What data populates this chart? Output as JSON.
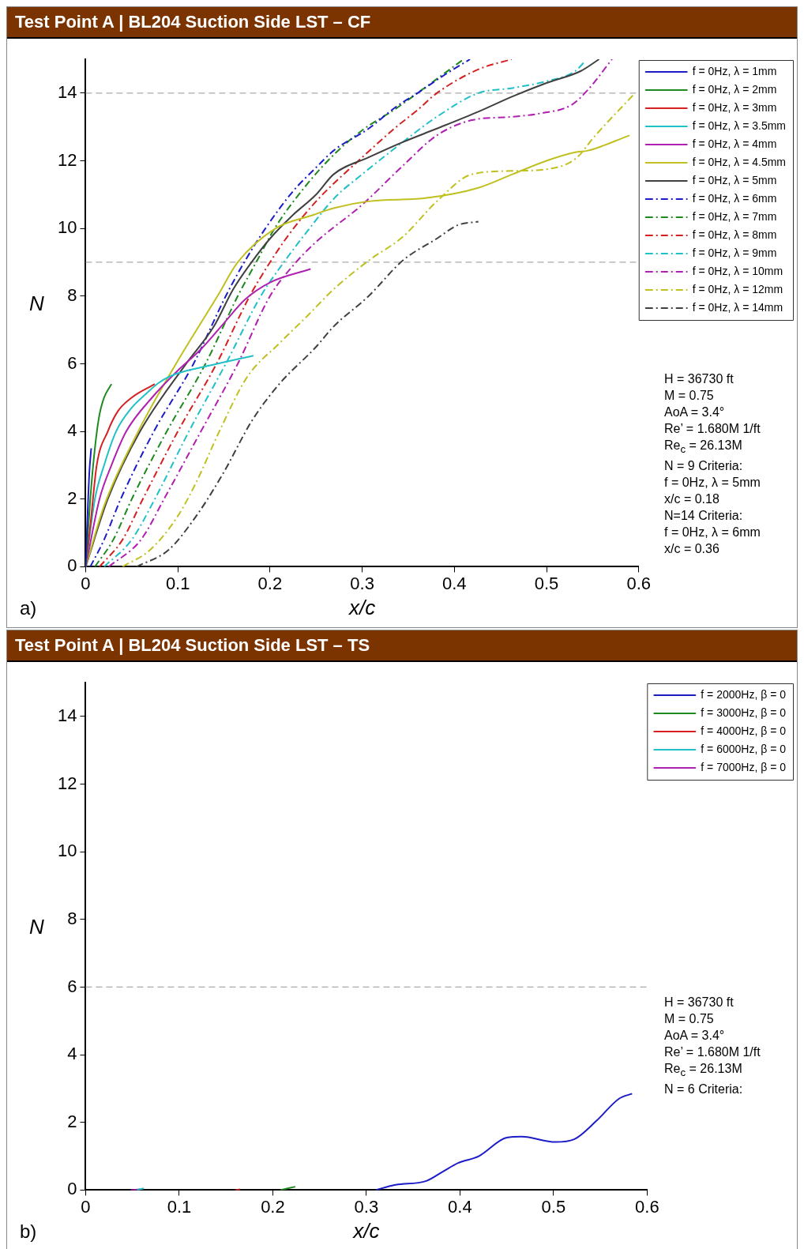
{
  "chart_data": [
    {
      "type": "line",
      "title": "Test Point A | BL204 Suction Side LST – CF",
      "xlabel": "x/c",
      "ylabel": "N",
      "xlim": [
        0,
        0.6
      ],
      "xticks": [
        0,
        0.1,
        0.2,
        0.3,
        0.4,
        0.5,
        0.6
      ],
      "ylim": [
        0,
        15
      ],
      "yticks": [
        0,
        2,
        4,
        6,
        8,
        10,
        12,
        14
      ],
      "grid": false,
      "legend": "top right",
      "marker": "none",
      "ref_lines": [
        {
          "axis": "y",
          "value": 14,
          "color": "#aaaaaa",
          "line_style": "dashed"
        },
        {
          "axis": "y",
          "value": 9,
          "color": "#aaaaaa",
          "line_style": "dashed"
        }
      ],
      "annotations": [
        "a)",
        "H = 36730 ft",
        "M = 0.75",
        "AoA = 3.4°",
        "Re’ = 1.680M 1/ft",
        "Re$_{c}$ = 26.13M",
        "N = 9 Criteria:",
        "f = 0Hz, λ = 5mm",
        "x/c = 0.18",
        "N=14 Criteria:",
        "f = 0Hz, λ = 6mm",
        "x/c = 0.36"
      ],
      "series": [
        {
          "name": "f = 0Hz, λ = 1mm",
          "color": "#1c1cc8",
          "line_style": "solid",
          "x": [
            0,
            0.002,
            0.004,
            0.006
          ],
          "values": [
            0,
            1.5,
            2.8,
            3.5
          ]
        },
        {
          "name": "f = 0Hz, λ = 2mm",
          "color": "#1e8a1e",
          "line_style": "solid",
          "x": [
            0,
            0.005,
            0.01,
            0.015,
            0.02,
            0.028
          ],
          "values": [
            0,
            2,
            3.5,
            4.5,
            5,
            5.4
          ]
        },
        {
          "name": "f = 0Hz, λ = 3mm",
          "color": "#d42020",
          "line_style": "solid",
          "x": [
            0,
            0.005,
            0.012,
            0.024,
            0.035,
            0.05,
            0.075
          ],
          "values": [
            0,
            1.2,
            3,
            4,
            4.6,
            5,
            5.4
          ]
        },
        {
          "name": "f = 0Hz, λ = 3.5mm",
          "color": "#20c0c8",
          "line_style": "solid",
          "x": [
            0,
            0.01,
            0.02,
            0.033,
            0.05,
            0.065,
            0.08,
            0.098,
            0.135,
            0.182
          ],
          "values": [
            0,
            2,
            3,
            4,
            4.7,
            5.1,
            5.45,
            5.7,
            5.95,
            6.24
          ]
        },
        {
          "name": "f = 0Hz, λ = 4mm",
          "color": "#b020b0",
          "line_style": "solid",
          "x": [
            0,
            0.015,
            0.028,
            0.044,
            0.072,
            0.1,
            0.124,
            0.15,
            0.173,
            0.2,
            0.244
          ],
          "values": [
            0,
            2,
            3,
            4,
            5,
            5.8,
            6.4,
            7.2,
            7.9,
            8.4,
            8.8
          ]
        },
        {
          "name": "f = 0Hz, λ = 4.5mm",
          "color": "#c0c020",
          "line_style": "solid",
          "x": [
            0,
            0.02,
            0.057,
            0.098,
            0.143,
            0.165,
            0.206,
            0.247,
            0.269,
            0.307,
            0.37,
            0.426,
            0.463,
            0.5,
            0.531,
            0.545,
            0.59
          ],
          "values": [
            0,
            1.8,
            4,
            6,
            8,
            9,
            10,
            10.4,
            10.6,
            10.8,
            10.9,
            11.2,
            11.6,
            12,
            12.25,
            12.3,
            12.75
          ]
        },
        {
          "name": "f = 0Hz, λ = 5mm",
          "color": "#404040",
          "line_style": "solid",
          "x": [
            0,
            0.024,
            0.059,
            0.109,
            0.139,
            0.16,
            0.18,
            0.2,
            0.225,
            0.25,
            0.269,
            0.307,
            0.344,
            0.381,
            0.426,
            0.463,
            0.5,
            0.537,
            0.557
          ],
          "values": [
            0,
            2,
            4,
            6,
            7.1,
            8.2,
            9,
            9.7,
            10.4,
            11,
            11.6,
            12.1,
            12.55,
            12.95,
            13.45,
            13.9,
            14.3,
            14.65,
            15
          ]
        },
        {
          "name": "f = 0Hz, λ = 6mm",
          "color": "#1c1cc8",
          "line_style": "dashdot",
          "x": [
            0.005,
            0.02,
            0.038,
            0.074,
            0.117,
            0.152,
            0.172,
            0.195,
            0.225,
            0.25,
            0.269,
            0.307,
            0.337,
            0.36,
            0.39,
            0.417
          ],
          "values": [
            0,
            0.8,
            2,
            4,
            6,
            8,
            9,
            10,
            11.1,
            11.8,
            12.3,
            12.95,
            13.6,
            14,
            14.55,
            15
          ]
        },
        {
          "name": "f = 0Hz, λ = 7mm",
          "color": "#1e8a1e",
          "line_style": "dashdot",
          "x": [
            0.01,
            0.03,
            0.05,
            0.088,
            0.13,
            0.165,
            0.185,
            0.205,
            0.24,
            0.27,
            0.3,
            0.337,
            0.36,
            0.39,
            0.41
          ],
          "values": [
            0,
            0.8,
            2,
            4,
            6,
            8,
            9,
            10,
            11.3,
            12.2,
            12.9,
            13.55,
            14,
            14.6,
            15
          ]
        },
        {
          "name": "f = 0Hz, λ = 8mm",
          "color": "#d42020",
          "line_style": "dashdot",
          "x": [
            0.015,
            0.04,
            0.062,
            0.1,
            0.142,
            0.178,
            0.2,
            0.22,
            0.25,
            0.3,
            0.337,
            0.36,
            0.381,
            0.426,
            0.462
          ],
          "values": [
            0,
            0.8,
            2,
            4,
            6,
            8,
            9,
            9.8,
            10.8,
            12.1,
            13,
            13.5,
            14,
            14.7,
            15
          ]
        },
        {
          "name": "f = 0Hz, λ = 9mm",
          "color": "#20c0c8",
          "line_style": "dashdot",
          "x": [
            0.02,
            0.05,
            0.075,
            0.112,
            0.152,
            0.19,
            0.215,
            0.24,
            0.27,
            0.3,
            0.344,
            0.381,
            0.426,
            0.463,
            0.5,
            0.531,
            0.542
          ],
          "values": [
            0,
            0.8,
            2,
            4,
            6,
            8,
            9,
            9.9,
            10.9,
            11.6,
            12.55,
            13.3,
            14,
            14.15,
            14.35,
            14.65,
            14.95
          ]
        },
        {
          "name": "f = 0Hz, λ = 10mm",
          "color": "#b020b0",
          "line_style": "dashdot",
          "x": [
            0.025,
            0.06,
            0.085,
            0.125,
            0.165,
            0.2,
            0.225,
            0.25,
            0.3,
            0.344,
            0.381,
            0.419,
            0.463,
            0.493,
            0.527,
            0.545,
            0.571
          ],
          "values": [
            0,
            0.8,
            2,
            4,
            6,
            8,
            8.9,
            9.6,
            10.7,
            11.85,
            12.75,
            13.2,
            13.3,
            13.4,
            13.65,
            14.1,
            15
          ]
        },
        {
          "name": "f = 0Hz, λ = 12mm",
          "color": "#c0c020",
          "line_style": "dashdot",
          "x": [
            0.04,
            0.07,
            0.1,
            0.12,
            0.145,
            0.175,
            0.21,
            0.24,
            0.269,
            0.307,
            0.344,
            0.381,
            0.419,
            0.463,
            0.5,
            0.531,
            0.553,
            0.596
          ],
          "values": [
            0,
            0.5,
            1.5,
            2.5,
            4,
            5.6,
            6.6,
            7.4,
            8.2,
            9.05,
            9.75,
            10.8,
            11.6,
            11.7,
            11.75,
            12.05,
            12.75,
            14
          ]
        },
        {
          "name": "f = 0Hz, λ = 14mm",
          "color": "#404040",
          "line_style": "dashdot",
          "x": [
            0.055,
            0.09,
            0.12,
            0.15,
            0.18,
            0.21,
            0.25,
            0.269,
            0.307,
            0.344,
            0.381,
            0.404,
            0.426
          ],
          "values": [
            0,
            0.5,
            1.5,
            2.8,
            4.3,
            5.4,
            6.5,
            7.1,
            8,
            9.05,
            9.7,
            10.1,
            10.2
          ]
        }
      ]
    },
    {
      "type": "line",
      "title": "Test Point A | BL204 Suction Side LST – TS",
      "xlabel": "x/c",
      "ylabel": "N",
      "xlim": [
        0,
        0.6
      ],
      "xticks": [
        0,
        0.1,
        0.2,
        0.3,
        0.4,
        0.5,
        0.6
      ],
      "ylim": [
        0,
        15
      ],
      "yticks": [
        0,
        2,
        4,
        6,
        8,
        10,
        12,
        14
      ],
      "grid": false,
      "legend": "top right",
      "marker": "none",
      "ref_lines": [
        {
          "axis": "y",
          "value": 6,
          "color": "#aaaaaa",
          "line_style": "dashed"
        }
      ],
      "annotations": [
        "b)",
        "H = 36730 ft",
        "M = 0.75",
        "AoA = 3.4°",
        "Re’ = 1.680M 1/ft",
        "Re$_{c}$ = 26.13M",
        "N = 6 Criteria:"
      ],
      "series": [
        {
          "name": "f = 2000Hz, β = 0",
          "color": "#1c1cc8",
          "line_style": "solid",
          "x": [
            0.31,
            0.33,
            0.364,
            0.382,
            0.398,
            0.42,
            0.45,
            0.466,
            0.502,
            0.522,
            0.546,
            0.57,
            0.584
          ],
          "values": [
            0,
            0.15,
            0.27,
            0.55,
            0.8,
            1,
            1.55,
            1.58,
            1.42,
            1.5,
            2.05,
            2.7,
            2.85
          ]
        },
        {
          "name": "f = 3000Hz, β = 0",
          "color": "#1e8a1e",
          "line_style": "solid",
          "x": [
            0.208,
            0.224
          ],
          "values": [
            0,
            0.1
          ]
        },
        {
          "name": "f = 4000Hz, β = 0",
          "color": "#d42020",
          "line_style": "solid",
          "x": [
            0.16,
            0.165
          ],
          "values": [
            0,
            0.02
          ]
        },
        {
          "name": "f = 6000Hz, β = 0",
          "color": "#20c0c8",
          "line_style": "solid",
          "x": [
            0.055,
            0.062
          ],
          "values": [
            0,
            0.05
          ]
        },
        {
          "name": "f = 7000Hz, β = 0",
          "color": "#b020b0",
          "line_style": "solid",
          "x": [
            0.048,
            0.058
          ],
          "values": [
            0,
            0.02
          ]
        }
      ]
    }
  ]
}
